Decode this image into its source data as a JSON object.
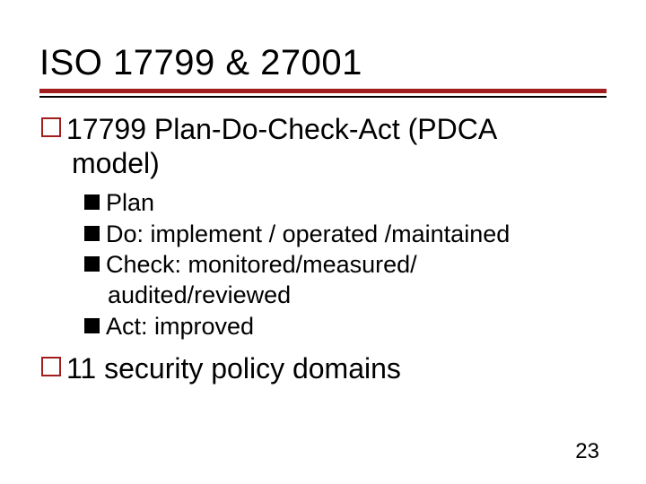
{
  "title": "ISO 17799 & 27001",
  "colors": {
    "accent": "#a01e1e",
    "text": "#000000",
    "background": "#ffffff"
  },
  "typography": {
    "title_fontsize": 40,
    "level1_fontsize": 32,
    "level2_fontsize": 27,
    "pagenum_fontsize": 24
  },
  "bullets": {
    "level1": [
      {
        "line1": "17799 Plan-Do-Check-Act (PDCA",
        "line2": "model)",
        "sub": [
          {
            "text": "Plan"
          },
          {
            "text": "Do: implement / operated /maintained"
          },
          {
            "text": "Check: monitored/measured/",
            "cont": "audited/reviewed"
          },
          {
            "text": "Act: improved"
          }
        ]
      },
      {
        "line1": "11 security policy domains"
      }
    ]
  },
  "page_number": "23"
}
